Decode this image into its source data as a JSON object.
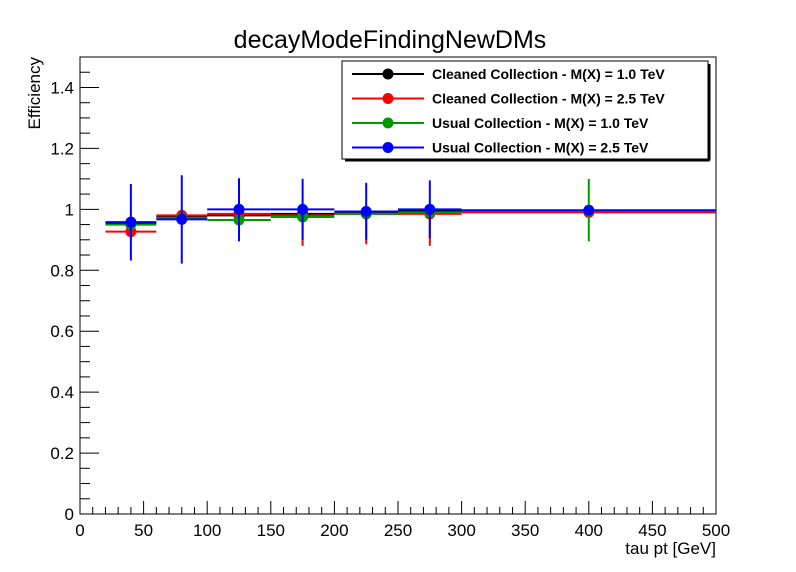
{
  "chart_data": {
    "type": "scatter",
    "title": "decayModeFindingNewDMs",
    "xlabel": "tau pt [GeV]",
    "ylabel": "Efficiency",
    "xlim": [
      0,
      500
    ],
    "ylim": [
      0,
      1.5
    ],
    "x_ticks": [
      "0",
      "50",
      "100",
      "150",
      "200",
      "250",
      "300",
      "350",
      "400",
      "450",
      "500"
    ],
    "y_ticks": [
      "0",
      "0.2",
      "0.4",
      "0.6",
      "0.8",
      "1",
      "1.2",
      "1.4"
    ],
    "grid": false,
    "legend_position": "top-right",
    "series": [
      {
        "name": "Cleaned Collection - M(X) = 1.0 TeV",
        "color": "#000000",
        "points": [
          {
            "x": 40,
            "xlo": 20,
            "xhi": 60,
            "y": 0.955,
            "ylo": 0.943,
            "yhi": 0.967
          },
          {
            "x": 80,
            "xlo": 60,
            "xhi": 100,
            "y": 0.975,
            "ylo": 0.963,
            "yhi": 0.987
          },
          {
            "x": 125,
            "xlo": 100,
            "xhi": 150,
            "y": 0.98,
            "ylo": 0.97,
            "yhi": 0.99
          },
          {
            "x": 175,
            "xlo": 150,
            "xhi": 200,
            "y": 0.985,
            "ylo": 0.975,
            "yhi": 0.995
          },
          {
            "x": 225,
            "xlo": 200,
            "xhi": 250,
            "y": 0.99,
            "ylo": 0.98,
            "yhi": 1.0
          },
          {
            "x": 275,
            "xlo": 250,
            "xhi": 300,
            "y": 0.995,
            "ylo": 0.985,
            "yhi": 1.0
          },
          {
            "x": 400,
            "xlo": 300,
            "xhi": 500,
            "y": 0.995,
            "ylo": 0.985,
            "yhi": 1.0
          }
        ]
      },
      {
        "name": "Cleaned Collection - M(X) = 2.5 TeV",
        "color": "#ff0000",
        "points": [
          {
            "x": 40,
            "xlo": 20,
            "xhi": 60,
            "y": 0.927,
            "ylo": 0.9,
            "yhi": 0.954
          },
          {
            "x": 80,
            "xlo": 60,
            "xhi": 100,
            "y": 0.98,
            "ylo": 0.965,
            "yhi": 0.995
          },
          {
            "x": 125,
            "xlo": 100,
            "xhi": 150,
            "y": 0.985,
            "ylo": 0.975,
            "yhi": 0.995
          },
          {
            "x": 175,
            "xlo": 150,
            "xhi": 200,
            "y": 0.98,
            "ylo": 0.88,
            "yhi": 1.0
          },
          {
            "x": 225,
            "xlo": 200,
            "xhi": 250,
            "y": 0.985,
            "ylo": 0.885,
            "yhi": 1.0
          },
          {
            "x": 275,
            "xlo": 250,
            "xhi": 300,
            "y": 0.985,
            "ylo": 0.88,
            "yhi": 1.0
          },
          {
            "x": 400,
            "xlo": 300,
            "xhi": 500,
            "y": 0.99,
            "ylo": 0.98,
            "yhi": 1.0
          }
        ]
      },
      {
        "name": "Usual Collection - M(X) = 1.0 TeV",
        "color": "#009900",
        "points": [
          {
            "x": 40,
            "xlo": 20,
            "xhi": 60,
            "y": 0.95,
            "ylo": 0.938,
            "yhi": 0.962
          },
          {
            "x": 80,
            "xlo": 60,
            "xhi": 100,
            "y": 0.972,
            "ylo": 0.96,
            "yhi": 0.984
          },
          {
            "x": 125,
            "xlo": 100,
            "xhi": 150,
            "y": 0.965,
            "ylo": 0.955,
            "yhi": 0.975
          },
          {
            "x": 175,
            "xlo": 150,
            "xhi": 200,
            "y": 0.975,
            "ylo": 0.965,
            "yhi": 0.985
          },
          {
            "x": 225,
            "xlo": 200,
            "xhi": 250,
            "y": 0.985,
            "ylo": 0.975,
            "yhi": 0.995
          },
          {
            "x": 275,
            "xlo": 250,
            "xhi": 300,
            "y": 0.99,
            "ylo": 0.98,
            "yhi": 1.0
          },
          {
            "x": 400,
            "xlo": 300,
            "xhi": 500,
            "y": 0.995,
            "ylo": 0.895,
            "yhi": 1.1
          }
        ]
      },
      {
        "name": "Usual Collection - M(X) = 2.5 TeV",
        "color": "#0000ff",
        "points": [
          {
            "x": 40,
            "xlo": 20,
            "xhi": 60,
            "y": 0.958,
            "ylo": 0.832,
            "yhi": 1.083
          },
          {
            "x": 80,
            "xlo": 60,
            "xhi": 100,
            "y": 0.967,
            "ylo": 0.822,
            "yhi": 1.112
          },
          {
            "x": 125,
            "xlo": 100,
            "xhi": 150,
            "y": 1.0,
            "ylo": 0.895,
            "yhi": 1.102
          },
          {
            "x": 175,
            "xlo": 150,
            "xhi": 200,
            "y": 1.0,
            "ylo": 0.9,
            "yhi": 1.1
          },
          {
            "x": 225,
            "xlo": 200,
            "xhi": 250,
            "y": 0.993,
            "ylo": 0.9,
            "yhi": 1.087
          },
          {
            "x": 275,
            "xlo": 250,
            "xhi": 300,
            "y": 1.0,
            "ylo": 0.905,
            "yhi": 1.095
          },
          {
            "x": 400,
            "xlo": 300,
            "xhi": 500,
            "y": 0.997,
            "ylo": 0.985,
            "yhi": 1.0
          }
        ]
      }
    ]
  }
}
